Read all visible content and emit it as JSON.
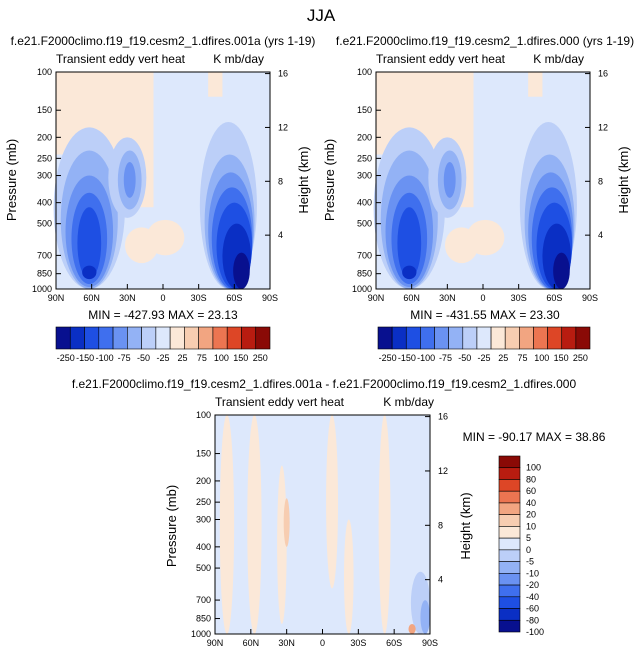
{
  "figure": {
    "title": "JJA"
  },
  "colors": {
    "main_scale": [
      "#08108f",
      "#0a2fc4",
      "#1e4fe3",
      "#3f6fee",
      "#6a92f2",
      "#93b2f5",
      "#bccff8",
      "#dde8fc",
      "#fbe8d8",
      "#f7cdb1",
      "#f2a581",
      "#ec7551",
      "#dd4626",
      "#b81c10",
      "#8a0a06"
    ],
    "diff_scale": [
      "#08108f",
      "#0a2fc4",
      "#1e4fe3",
      "#3f6fee",
      "#6a92f2",
      "#93b2f5",
      "#bccff8",
      "#dde8fc",
      "#fbe8d8",
      "#f7cdb1",
      "#f2a581",
      "#ec7551",
      "#dd4626",
      "#b81c10",
      "#8a0a06"
    ]
  },
  "chart_data": [
    {
      "type": "heatmap",
      "title": "f.e21.F2000climo.f19_f19.cesm2_1.dfires.001a (yrs 1-19)",
      "left_label": "Transient eddy vert heat",
      "right_label": "K mb/day",
      "xlabel": "",
      "ylabel": "Pressure (mb)",
      "y2label": "Height (km)",
      "x_ticks": [
        "90N",
        "60N",
        "30N",
        "0",
        "30S",
        "60S",
        "90S"
      ],
      "y_ticks": [
        100,
        150,
        200,
        250,
        300,
        400,
        500,
        700,
        850,
        1000
      ],
      "y_scale": "log",
      "y_reversed": true,
      "y2_ticks": [
        4,
        8,
        12,
        16
      ],
      "ylim": [
        1000,
        100
      ],
      "minmax_text": "MIN = -427.93   MAX = 23.13",
      "colorbar_labels": [
        "-250",
        "-150",
        "-100",
        "-75",
        "-50",
        "-25",
        "25",
        "75",
        "100",
        "150",
        "250"
      ],
      "contour_levels": [
        -250,
        -200,
        -150,
        -100,
        -75,
        -50,
        -25,
        -10,
        10,
        25,
        50,
        75,
        100,
        150,
        200,
        250
      ]
    },
    {
      "type": "heatmap",
      "title": "f.e21.F2000climo.f19_f19.cesm2_1.dfires.000 (yrs 1-19)",
      "left_label": "Transient eddy vert heat",
      "right_label": "K mb/day",
      "xlabel": "",
      "ylabel": "Pressure (mb)",
      "y2label": "Height (km)",
      "x_ticks": [
        "90N",
        "60N",
        "30N",
        "0",
        "30S",
        "60S",
        "90S"
      ],
      "y_ticks": [
        100,
        150,
        200,
        250,
        300,
        400,
        500,
        700,
        850,
        1000
      ],
      "y_scale": "log",
      "y_reversed": true,
      "y2_ticks": [
        4,
        8,
        12,
        16
      ],
      "ylim": [
        1000,
        100
      ],
      "minmax_text": "MIN = -431.55   MAX = 23.30",
      "colorbar_labels": [
        "-250",
        "-150",
        "-100",
        "-75",
        "-50",
        "-25",
        "25",
        "75",
        "100",
        "150",
        "250"
      ],
      "contour_levels": [
        -250,
        -200,
        -150,
        -100,
        -75,
        -50,
        -25,
        -10,
        10,
        25,
        50,
        75,
        100,
        150,
        200,
        250
      ]
    },
    {
      "type": "heatmap",
      "title": "f.e21.F2000climo.f19_f19.cesm2_1.dfires.001a - f.e21.F2000climo.f19_f19.cesm2_1.dfires.000",
      "left_label": "Transient eddy vert heat",
      "right_label": "K mb/day",
      "xlabel": "",
      "ylabel": "Pressure (mb)",
      "y2label": "Height (km)",
      "x_ticks": [
        "90N",
        "60N",
        "30N",
        "0",
        "30S",
        "60S",
        "90S"
      ],
      "y_ticks": [
        100,
        150,
        200,
        250,
        300,
        400,
        500,
        700,
        850,
        1000
      ],
      "y_scale": "log",
      "y_reversed": true,
      "y2_ticks": [
        4,
        8,
        12,
        16
      ],
      "ylim": [
        1000,
        100
      ],
      "minmax_text": "MIN = -90.17   MAX = 38.86",
      "colorbar_labels": [
        "100",
        "80",
        "60",
        "40",
        "20",
        "10",
        "5",
        "0",
        "-5",
        "-10",
        "-20",
        "-40",
        "-60",
        "-80",
        "-100"
      ],
      "contour_levels": [
        -100,
        -80,
        -60,
        -40,
        -20,
        -10,
        -5,
        0,
        5,
        10,
        20,
        40,
        60,
        80,
        100
      ]
    }
  ]
}
